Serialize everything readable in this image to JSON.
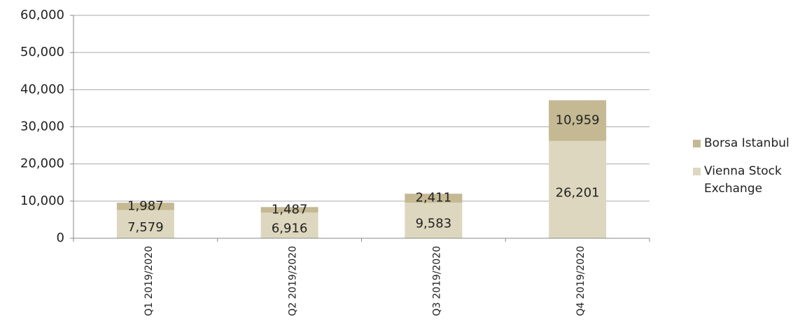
{
  "chart_data": {
    "type": "stacked_bar",
    "categories": [
      "Q1 2019/2020",
      "Q2 2019/2020",
      "Q3 2019/2020",
      "Q4 2019/2020"
    ],
    "series": [
      {
        "name": "Vienna Stock Exchange",
        "color": "#ddd7bf",
        "values": [
          7579,
          6916,
          9583,
          26201
        ],
        "value_labels": [
          "7,579",
          "6,916",
          "9,583",
          "26,201"
        ]
      },
      {
        "name": "Borsa Istanbul",
        "color": "#c4b993",
        "values": [
          1987,
          1487,
          2411,
          10959
        ],
        "value_labels": [
          "1,987",
          "1,487",
          "2,411",
          "10,959"
        ]
      }
    ],
    "ylim": [
      0,
      60000
    ],
    "yticks": [
      0,
      {
        "value": 10000,
        "label": "10,000"
      },
      {
        "value": 20000,
        "label": "20,000"
      },
      {
        "value": 30000,
        "label": "30,000"
      },
      {
        "value": 40000,
        "label": "40,000"
      },
      {
        "value": 50000,
        "label": "50,000"
      },
      {
        "value": 60000,
        "label": "60,000"
      }
    ],
    "grid": true,
    "legend": "right"
  }
}
